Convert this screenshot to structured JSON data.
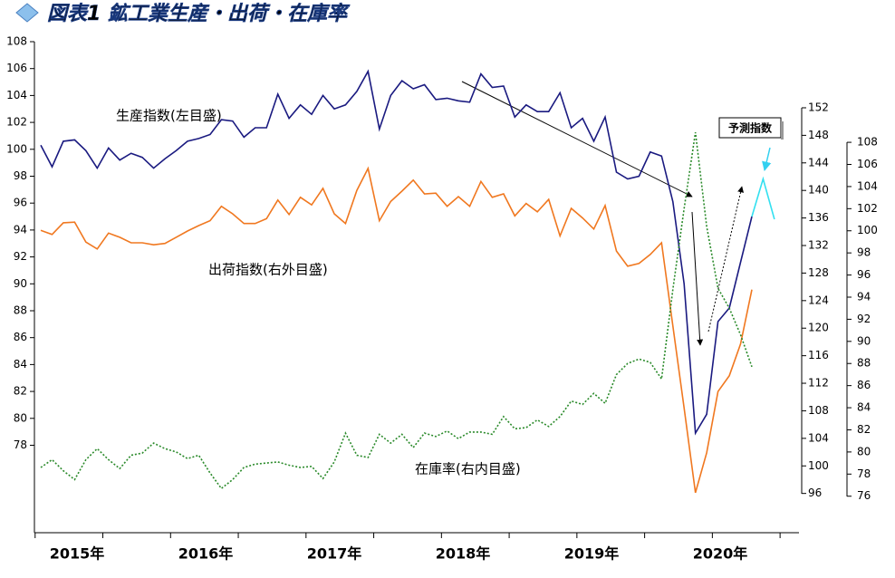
{
  "chart_data": {
    "type": "line",
    "title": "図表1 鉱工業生産・出荷・在庫率",
    "x_labels": [
      "2015年",
      "2016年",
      "2017年",
      "2018年",
      "2019年",
      "2020年"
    ],
    "ylim": [
      71.5,
      108
    ],
    "yticks": [
      78,
      80,
      82,
      84,
      86,
      88,
      90,
      92,
      94,
      96,
      98,
      100,
      102,
      104,
      106,
      108
    ],
    "y2lim": [
      90.3,
      161.6
    ],
    "y2ticks": [
      96,
      100,
      104,
      108,
      112,
      116,
      120,
      124,
      128,
      132,
      136,
      140,
      144,
      148,
      152
    ],
    "y3lim": [
      72.7,
      117.1
    ],
    "y3ticks": [
      76,
      78,
      80,
      82,
      84,
      86,
      88,
      90,
      92,
      94,
      96,
      98,
      100,
      102,
      104,
      106,
      108
    ],
    "series": [
      {
        "name": "生産指数(左目盛)",
        "color": "#1a1a80",
        "axis": "y",
        "dashed": false,
        "values": [
          100.3,
          98.7,
          100.6,
          100.7,
          99.9,
          98.6,
          100.1,
          99.2,
          99.7,
          99.4,
          98.6,
          99.3,
          99.9,
          100.6,
          100.8,
          101.1,
          102.2,
          102.1,
          100.9,
          101.6,
          101.6,
          104.1,
          102.3,
          103.3,
          102.6,
          104.0,
          103.0,
          103.3,
          104.3,
          105.8,
          101.5,
          104.0,
          105.1,
          104.5,
          104.8,
          103.7,
          103.8,
          103.6,
          103.5,
          105.6,
          104.6,
          104.7,
          102.4,
          103.3,
          102.8,
          102.8,
          104.2,
          101.6,
          102.3,
          100.6,
          102.4,
          98.3,
          97.8,
          98.0,
          99.8,
          99.5,
          96.1,
          90.0,
          78.9,
          80.3,
          87.2,
          88.2,
          91.6,
          95.0,
          null,
          null
        ]
      },
      {
        "name": "出荷指数(右外目盛)",
        "color": "#f07820",
        "axis": "y2",
        "dashed": false,
        "values": [
          134.2,
          133.6,
          135.3,
          135.4,
          132.5,
          131.5,
          133.8,
          133.2,
          132.4,
          132.4,
          132.1,
          132.3,
          133.2,
          134.1,
          134.9,
          135.6,
          137.7,
          136.6,
          135.2,
          135.2,
          135.9,
          138.6,
          136.5,
          139.0,
          137.9,
          140.3,
          136.6,
          135.2,
          140.0,
          143.2,
          135.6,
          138.4,
          139.9,
          141.5,
          139.5,
          139.6,
          137.7,
          139.1,
          137.7,
          141.3,
          139.0,
          139.5,
          136.3,
          138.1,
          136.9,
          138.7,
          133.4,
          137.4,
          136.0,
          134.4,
          137.8,
          131.2,
          129.0,
          129.4,
          130.7,
          132.4,
          120.3,
          108.4,
          96.1,
          101.9,
          110.8,
          113.1,
          117.7,
          125.6,
          null,
          null
        ]
      },
      {
        "name": "在庫率(右内目盛)",
        "color": "#2a8a2a",
        "axis": "y3",
        "dashed": true,
        "values": [
          78.6,
          79.3,
          78.3,
          77.5,
          79.3,
          80.3,
          79.3,
          78.5,
          79.7,
          79.9,
          80.8,
          80.3,
          80.0,
          79.4,
          79.7,
          78.1,
          76.7,
          77.5,
          78.6,
          78.9,
          79.0,
          79.1,
          78.8,
          78.6,
          78.7,
          77.6,
          79.1,
          81.7,
          79.7,
          79.5,
          81.6,
          80.8,
          81.6,
          80.4,
          81.7,
          81.4,
          81.9,
          81.2,
          81.8,
          81.8,
          81.6,
          83.2,
          82.1,
          82.2,
          82.9,
          82.3,
          83.2,
          84.6,
          84.3,
          85.3,
          84.4,
          87.0,
          88.0,
          88.4,
          88.1,
          86.6,
          94.7,
          102.0,
          108.9,
          100.4,
          94.8,
          93.0,
          90.6,
          87.7,
          null,
          null
        ]
      },
      {
        "name": "予測指数",
        "color": "#33e0f0",
        "axis": "y",
        "dashed": false,
        "values": [
          null,
          null,
          null,
          null,
          null,
          null,
          null,
          null,
          null,
          null,
          null,
          null,
          null,
          null,
          null,
          null,
          null,
          null,
          null,
          null,
          null,
          null,
          null,
          null,
          null,
          null,
          null,
          null,
          null,
          null,
          null,
          null,
          null,
          null,
          null,
          null,
          null,
          null,
          null,
          null,
          null,
          null,
          null,
          null,
          null,
          null,
          null,
          null,
          null,
          null,
          null,
          null,
          null,
          null,
          null,
          null,
          null,
          null,
          null,
          null,
          null,
          null,
          null,
          95.0,
          97.8,
          94.8
        ]
      }
    ]
  }
}
